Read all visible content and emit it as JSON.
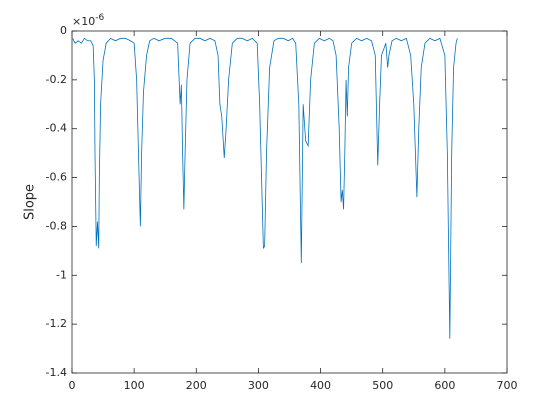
{
  "chart_data": {
    "type": "line",
    "ylabel": "Slope",
    "axis_multiplier": {
      "base": "×10",
      "exponent": "-6"
    },
    "color": "#0072bd",
    "x": [
      1,
      5,
      10,
      15,
      20,
      25,
      30,
      34,
      36,
      37,
      39,
      41,
      43,
      44,
      46,
      50,
      55,
      62,
      70,
      78,
      86,
      94,
      100,
      104,
      107,
      110,
      112,
      115,
      120,
      125,
      132,
      140,
      150,
      160,
      170,
      174,
      176,
      178,
      180,
      182,
      185,
      190,
      198,
      206,
      214,
      222,
      230,
      235,
      238,
      241,
      245,
      248,
      252,
      258,
      266,
      274,
      282,
      290,
      298,
      302,
      305,
      308,
      310,
      313,
      318,
      325,
      332,
      340,
      348,
      355,
      360,
      365,
      369,
      372,
      376,
      380,
      384,
      390,
      398,
      406,
      414,
      420,
      425,
      430,
      433,
      435,
      437,
      439,
      441,
      443,
      445,
      450,
      458,
      466,
      474,
      482,
      488,
      492,
      495,
      498,
      505,
      508,
      510,
      515,
      522,
      530,
      538,
      545,
      550,
      555,
      558,
      562,
      568,
      576,
      584,
      592,
      600,
      604,
      608,
      611,
      614,
      618,
      620
    ],
    "values": [
      -0.03,
      -0.05,
      -0.04,
      -0.05,
      -0.03,
      -0.04,
      -0.04,
      -0.06,
      -0.2,
      -0.5,
      -0.88,
      -0.78,
      -0.89,
      -0.6,
      -0.3,
      -0.12,
      -0.05,
      -0.03,
      -0.04,
      -0.03,
      -0.03,
      -0.04,
      -0.05,
      -0.2,
      -0.5,
      -0.8,
      -0.5,
      -0.25,
      -0.1,
      -0.04,
      -0.03,
      -0.04,
      -0.03,
      -0.03,
      -0.05,
      -0.3,
      -0.22,
      -0.5,
      -0.73,
      -0.5,
      -0.2,
      -0.05,
      -0.03,
      -0.03,
      -0.04,
      -0.03,
      -0.04,
      -0.1,
      -0.3,
      -0.35,
      -0.52,
      -0.4,
      -0.2,
      -0.05,
      -0.03,
      -0.03,
      -0.04,
      -0.03,
      -0.05,
      -0.3,
      -0.6,
      -0.89,
      -0.88,
      -0.5,
      -0.15,
      -0.04,
      -0.03,
      -0.03,
      -0.04,
      -0.03,
      -0.05,
      -0.3,
      -0.95,
      -0.3,
      -0.45,
      -0.47,
      -0.2,
      -0.05,
      -0.03,
      -0.04,
      -0.03,
      -0.04,
      -0.1,
      -0.4,
      -0.7,
      -0.65,
      -0.73,
      -0.5,
      -0.2,
      -0.35,
      -0.15,
      -0.05,
      -0.03,
      -0.04,
      -0.03,
      -0.04,
      -0.1,
      -0.55,
      -0.3,
      -0.1,
      -0.05,
      -0.15,
      -0.1,
      -0.04,
      -0.03,
      -0.04,
      -0.03,
      -0.1,
      -0.3,
      -0.68,
      -0.4,
      -0.15,
      -0.05,
      -0.03,
      -0.04,
      -0.03,
      -0.1,
      -0.5,
      -1.26,
      -0.5,
      -0.15,
      -0.05,
      -0.03
    ],
    "xlim": [
      0,
      700
    ],
    "xticks": [
      0,
      100,
      200,
      300,
      400,
      500,
      600,
      700
    ],
    "ylim": [
      -1.4,
      0
    ],
    "yticks": [
      -1.4,
      -1.2,
      -1,
      -0.8,
      -0.6,
      -0.4,
      -0.2,
      0
    ],
    "grid": false
  }
}
